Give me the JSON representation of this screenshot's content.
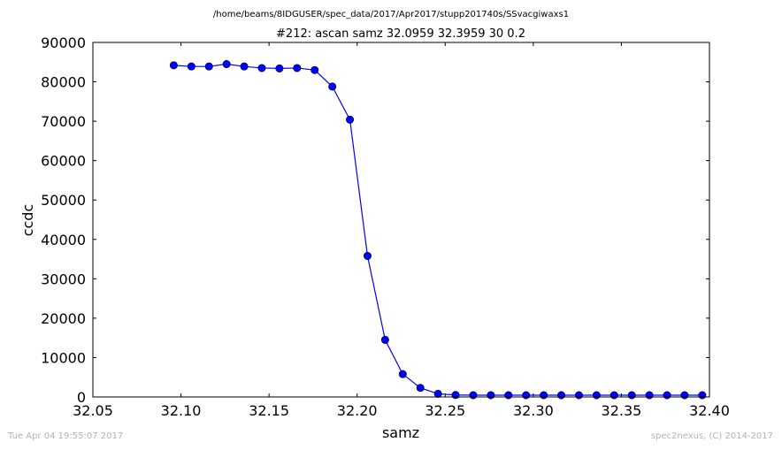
{
  "chart_data": {
    "type": "line",
    "suptitle": "/home/beams/8IDGUSER/spec_data/2017/Apr2017/stupp201740s/SSvacgiwaxs1",
    "title": "#212: ascan  samz 32.0959 32.3959  30 0.2",
    "xlabel": "samz",
    "ylabel": "ccdc",
    "xlim": [
      32.05,
      32.4
    ],
    "ylim": [
      0,
      90000
    ],
    "xticks": [
      "32.05",
      "32.10",
      "32.15",
      "32.20",
      "32.25",
      "32.30",
      "32.35",
      "32.40"
    ],
    "yticks": [
      "0",
      "10000",
      "20000",
      "30000",
      "40000",
      "50000",
      "60000",
      "70000",
      "80000",
      "90000"
    ],
    "grid": false,
    "line_color": "#0000ff",
    "series": [
      {
        "x": [
          32.0959,
          32.1059,
          32.1159,
          32.1259,
          32.1359,
          32.1459,
          32.1559,
          32.1659,
          32.1759,
          32.1859,
          32.1959,
          32.2059,
          32.2159,
          32.2259,
          32.2359,
          32.2459,
          32.2559,
          32.2659,
          32.2759,
          32.2859,
          32.2959,
          32.3059,
          32.3159,
          32.3259,
          32.3359,
          32.3459,
          32.3559,
          32.3659,
          32.3759,
          32.3859,
          32.3959
        ],
        "values": [
          84200,
          83900,
          83900,
          84500,
          83900,
          83500,
          83400,
          83500,
          83000,
          78800,
          70400,
          35800,
          14500,
          5800,
          2300,
          800,
          500,
          450,
          450,
          450,
          450,
          450,
          450,
          450,
          450,
          450,
          450,
          450,
          450,
          450,
          450
        ]
      }
    ]
  },
  "footer": {
    "left": "Tue Apr 04 19:55:07 2017",
    "right": "spec2nexus, (C) 2014-2017"
  }
}
